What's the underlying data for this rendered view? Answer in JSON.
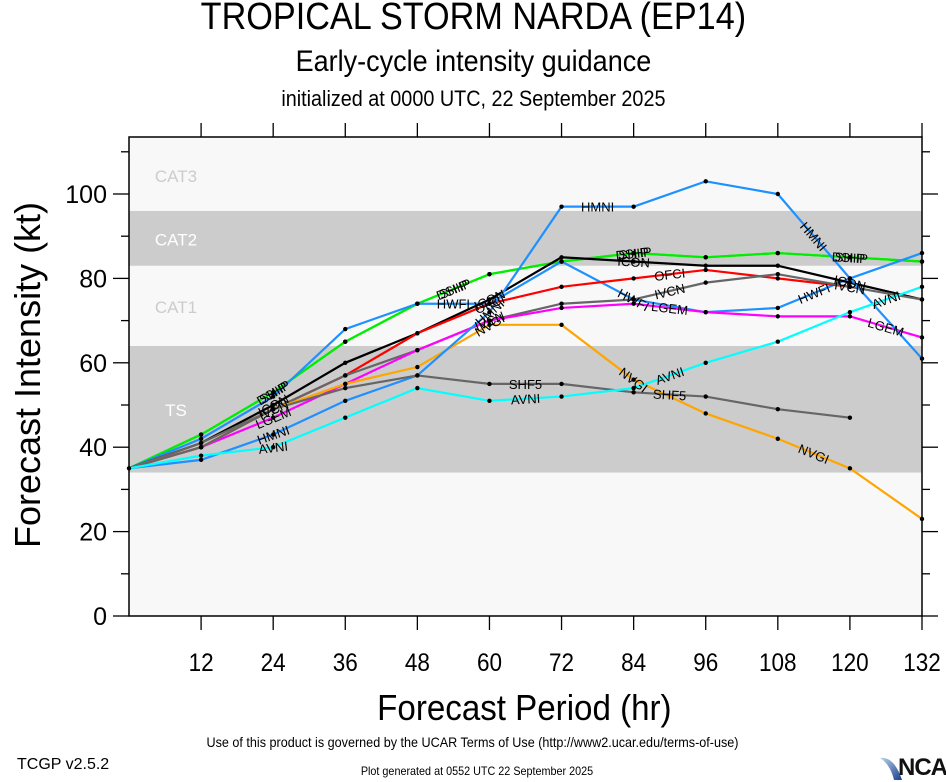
{
  "header": {
    "title": "TROPICAL STORM NARDA (EP14)",
    "subtitle": "Early-cycle intensity guidance",
    "init": "initialized at 0000 UTC, 22 September 2025"
  },
  "footer": {
    "terms": "Use of this product is governed by the UCAR Terms of Use (http://www2.ucar.edu/terms-of-use)",
    "version": "TCGP v2.5.2",
    "generated": "Plot generated at 0552 UTC   22 September 2025",
    "logo": "NCAR"
  },
  "chart_data": {
    "type": "line",
    "title": "TROPICAL STORM NARDA (EP14)",
    "xlabel": "Forecast Period (hr)",
    "ylabel": "Forecast Intensity (kt)",
    "xlim": [
      0,
      132
    ],
    "ylim": [
      0,
      113
    ],
    "xticks": [
      12,
      24,
      36,
      48,
      60,
      72,
      84,
      96,
      108,
      120,
      132
    ],
    "yticks": [
      0,
      20,
      40,
      60,
      80,
      100
    ],
    "grid": false,
    "legend": "inline labels",
    "bands": [
      {
        "label": "TS",
        "from": 34,
        "to": 64,
        "color": "#cccccc"
      },
      {
        "label": "CAT1",
        "from": 64,
        "to": 83,
        "color": "#f8f8f8"
      },
      {
        "label": "CAT2",
        "from": 83,
        "to": 96,
        "color": "#cccccc"
      },
      {
        "label": "CAT3",
        "from": 96,
        "to": 113,
        "color": "#f8f8f8"
      }
    ],
    "background_color": "#f8f8f8",
    "x": [
      0,
      12,
      24,
      36,
      48,
      60,
      72,
      84,
      96,
      108,
      120,
      132
    ],
    "series": [
      {
        "name": "DSHP",
        "color": "#00ee00",
        "values": [
          35,
          43,
          53,
          65,
          74,
          81,
          84,
          86,
          85,
          86,
          85,
          84
        ],
        "label_at": [
          24,
          54,
          84,
          120
        ]
      },
      {
        "name": "SHIP",
        "color": "#00ee00",
        "values": [
          35,
          43,
          53,
          65,
          74,
          81,
          84,
          86,
          85,
          86,
          85,
          84
        ],
        "label_at": [
          24,
          54,
          84,
          120
        ]
      },
      {
        "name": "HWFI",
        "color": "#1e90ff",
        "values": [
          35,
          42,
          52,
          68,
          74,
          74,
          84,
          75,
          72,
          73,
          80,
          86
        ],
        "label_at": [
          54,
          84,
          114
        ]
      },
      {
        "name": "ICON",
        "color": "#000000",
        "values": [
          35,
          41,
          50,
          60,
          67,
          75,
          85,
          84,
          83,
          83,
          79,
          75
        ],
        "label_at": [
          24,
          60,
          84,
          120
        ]
      },
      {
        "name": "OFCI",
        "color": "#ff0000",
        "values": [
          35,
          40,
          49,
          57,
          67,
          74,
          78,
          80,
          82,
          80,
          78,
          null
        ],
        "label_at": [
          60,
          90
        ]
      },
      {
        "name": "IVCN",
        "color": "#666666",
        "values": [
          35,
          41,
          49,
          57,
          63,
          70,
          74,
          75,
          79,
          81,
          78,
          75
        ],
        "label_at": [
          24,
          60,
          90,
          120
        ]
      },
      {
        "name": "LGEM",
        "color": "#ff00ff",
        "values": [
          35,
          40,
          47,
          55,
          63,
          70,
          73,
          74,
          72,
          71,
          71,
          66
        ],
        "label_at": [
          24,
          90,
          126
        ]
      },
      {
        "name": "NVGI",
        "color": "#ffa500",
        "values": [
          35,
          40,
          49,
          55,
          59,
          69,
          69,
          56,
          48,
          42,
          35,
          23
        ],
        "label_at": [
          60,
          84,
          114
        ]
      },
      {
        "name": "HMNI",
        "color": "#1e90ff",
        "values": [
          35,
          37,
          43,
          51,
          57,
          72,
          97,
          97,
          103,
          100,
          80,
          61
        ],
        "label_at": [
          24,
          60,
          78,
          114
        ]
      },
      {
        "name": "SHF5",
        "color": "#666666",
        "values": [
          35,
          40,
          49,
          54,
          57,
          55,
          55,
          53,
          52,
          49,
          47,
          null
        ],
        "label_at": [
          66,
          90
        ]
      },
      {
        "name": "AVNI",
        "color": "#00ffff",
        "values": [
          35,
          38,
          40,
          47,
          54,
          51,
          52,
          54,
          60,
          65,
          72,
          78
        ],
        "label_at": [
          24,
          66,
          90,
          126
        ]
      }
    ]
  }
}
